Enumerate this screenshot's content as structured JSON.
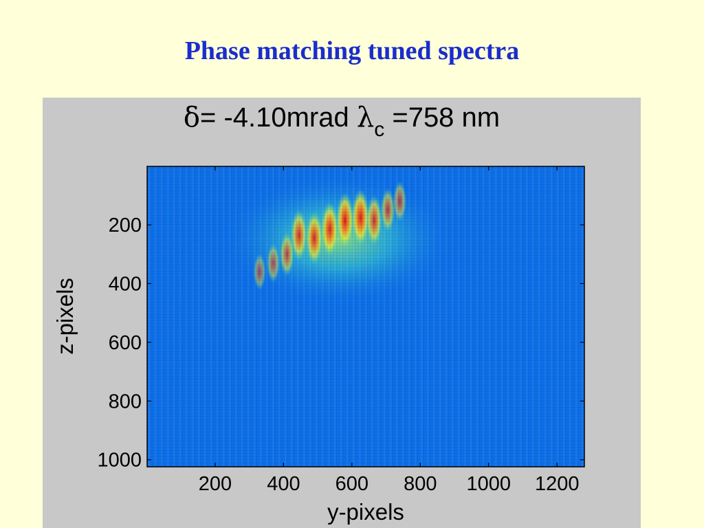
{
  "slide": {
    "title": "Phase matching tuned spectra"
  },
  "chart_data": {
    "type": "heatmap",
    "title": {
      "delta_symbol": "δ",
      "delta_text": "= -4.10mrad ",
      "lambda_symbol": "λ",
      "lambda_sub": "c",
      "lambda_text": " =758 nm"
    },
    "xlabel": "y-pixels",
    "ylabel": "z-pixels",
    "xlim": [
      1,
      1280
    ],
    "ylim": [
      1,
      1024
    ],
    "y_reversed": true,
    "xticks": [
      200,
      400,
      600,
      800,
      1000,
      1200
    ],
    "yticks": [
      200,
      400,
      600,
      800,
      1000
    ],
    "colormap": "jet",
    "colors": {
      "background": "#0b6fe8",
      "hot": "#e01010",
      "panel": "#c8c8c8"
    },
    "hotspots": [
      {
        "y": 445,
        "z": 235,
        "intensity": 0.78
      },
      {
        "y": 490,
        "z": 245,
        "intensity": 0.85
      },
      {
        "y": 535,
        "z": 215,
        "intensity": 0.9
      },
      {
        "y": 580,
        "z": 185,
        "intensity": 0.95
      },
      {
        "y": 625,
        "z": 175,
        "intensity": 0.97
      },
      {
        "y": 665,
        "z": 185,
        "intensity": 0.75
      },
      {
        "y": 705,
        "z": 150,
        "intensity": 0.55
      },
      {
        "y": 740,
        "z": 120,
        "intensity": 0.45
      },
      {
        "y": 410,
        "z": 300,
        "intensity": 0.55
      },
      {
        "y": 370,
        "z": 330,
        "intensity": 0.4
      },
      {
        "y": 330,
        "z": 360,
        "intensity": 0.32
      }
    ]
  }
}
